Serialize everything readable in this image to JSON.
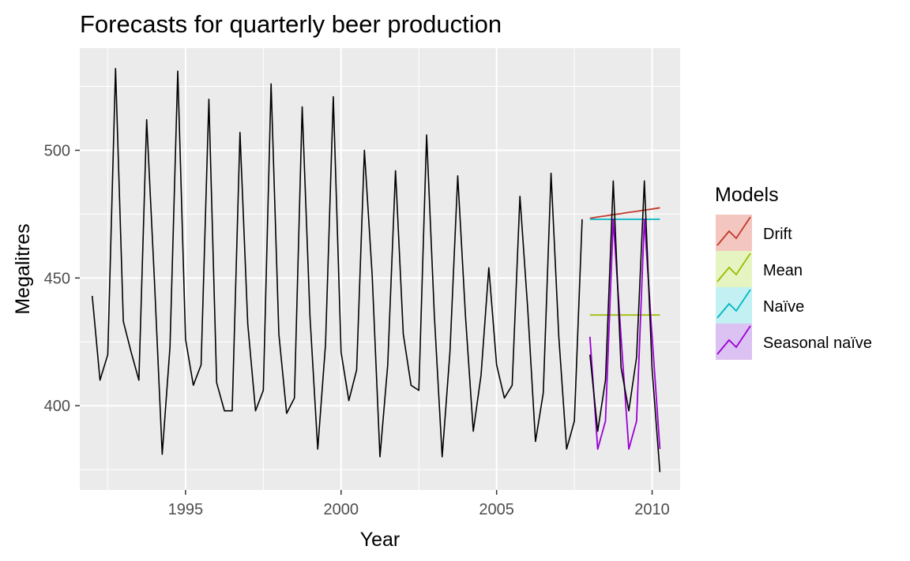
{
  "chart_data": {
    "type": "line",
    "title": "Forecasts for quarterly beer production",
    "xlabel": "Year",
    "ylabel": "Megalitres",
    "xlim": [
      1991.6,
      2010.9
    ],
    "ylim": [
      367,
      540
    ],
    "x_ticks": [
      1995,
      2000,
      2005,
      2010
    ],
    "y_ticks": [
      400,
      450,
      500
    ],
    "grid": true,
    "legend": {
      "title": "Models",
      "placement": "right"
    },
    "colors": {
      "panel": "#ebebeb",
      "grid": "#ffffff",
      "history": "#000000",
      "test": "#000000"
    },
    "history": {
      "start": 1992.0,
      "step": 0.25,
      "values": [
        443,
        410,
        420,
        532,
        433,
        421,
        410,
        512,
        449,
        381,
        423,
        531,
        426,
        408,
        416,
        520,
        409,
        398,
        398,
        507,
        432,
        398,
        406,
        526,
        428,
        397,
        403,
        517,
        435,
        383,
        424,
        521,
        421,
        402,
        414,
        500,
        451,
        380,
        416,
        492,
        428,
        408,
        406,
        506,
        435,
        380,
        421,
        490,
        435,
        390,
        412,
        454,
        416,
        403,
        408,
        482,
        438,
        386,
        405,
        491,
        427,
        383,
        394,
        473
      ]
    },
    "test": {
      "start": 2008.0,
      "step": 0.25,
      "values": [
        420,
        390,
        410,
        488,
        415,
        398,
        419,
        488,
        414,
        374
      ]
    },
    "forecast_x": [
      2008.0,
      2008.25,
      2008.5,
      2008.75,
      2009.0,
      2009.25,
      2009.5,
      2009.75,
      2010.0,
      2010.25
    ],
    "series": [
      {
        "name": "Drift",
        "color": "#c0392b",
        "fill": "#f4c6c0",
        "values": [
          473.4,
          473.9,
          474.3,
          474.8,
          475.2,
          475.7,
          476.1,
          476.6,
          477.0,
          477.5
        ]
      },
      {
        "name": "Mean",
        "color": "#9dba00",
        "fill": "#e6f4c2",
        "values": [
          435.5,
          435.5,
          435.5,
          435.5,
          435.5,
          435.5,
          435.5,
          435.5,
          435.5,
          435.5
        ]
      },
      {
        "name": "Naïve",
        "color": "#00b7c3",
        "fill": "#c2f0f3",
        "values": [
          473,
          473,
          473,
          473,
          473,
          473,
          473,
          473,
          473,
          473
        ]
      },
      {
        "name": "Seasonal naïve",
        "color": "#9a00d6",
        "fill": "#dcc2f2",
        "values": [
          427,
          383,
          394,
          473,
          427,
          383,
          394,
          473,
          427,
          383
        ]
      }
    ]
  }
}
